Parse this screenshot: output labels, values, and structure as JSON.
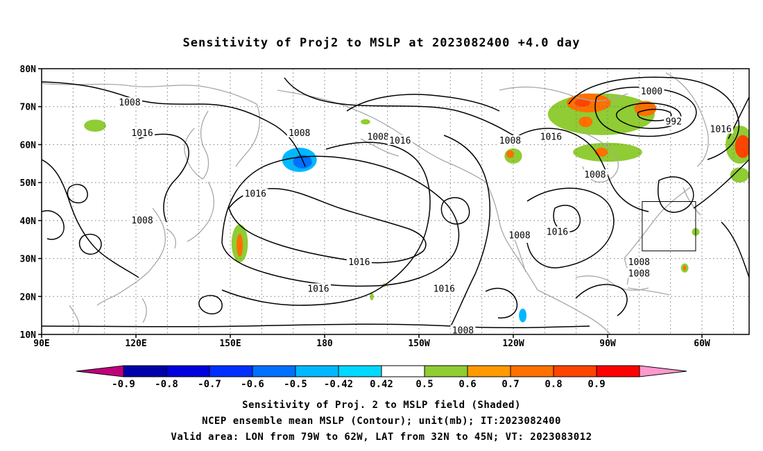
{
  "title": "Sensitivity of Proj2 to MSLP at 2023082400 +4.0 day",
  "map": {
    "lon_labels": [
      "90E",
      "120E",
      "150E",
      "180",
      "150W",
      "120W",
      "90W",
      "60W"
    ],
    "lat_labels": [
      "80N",
      "70N",
      "60N",
      "50N",
      "40N",
      "30N",
      "20N",
      "10N"
    ],
    "lon_range": [
      90,
      315
    ],
    "lat_range": [
      10,
      80
    ],
    "grid_step_lon": 10,
    "grid_step_lat": 10,
    "grid": true
  },
  "contour_labels": [
    {
      "text": "1008",
      "lon": 118,
      "lat": 71
    },
    {
      "text": "1016",
      "lon": 122,
      "lat": 63
    },
    {
      "text": "1008",
      "lon": 172,
      "lat": 63
    },
    {
      "text": "1008",
      "lon": 197,
      "lat": 62
    },
    {
      "text": "1016",
      "lon": 204,
      "lat": 61
    },
    {
      "text": "1008",
      "lon": 239,
      "lat": 61
    },
    {
      "text": "1016",
      "lon": 252,
      "lat": 62
    },
    {
      "text": "1000",
      "lon": 284,
      "lat": 74
    },
    {
      "text": "992",
      "lon": 291,
      "lat": 66
    },
    {
      "text": "1016",
      "lon": 306,
      "lat": 64
    },
    {
      "text": "1008",
      "lon": 266,
      "lat": 52
    },
    {
      "text": "1016",
      "lon": 158,
      "lat": 47
    },
    {
      "text": "1008",
      "lon": 122,
      "lat": 40
    },
    {
      "text": "1016",
      "lon": 254,
      "lat": 37
    },
    {
      "text": "1008",
      "lon": 242,
      "lat": 36
    },
    {
      "text": "1016",
      "lon": 191,
      "lat": 29
    },
    {
      "text": "1016",
      "lon": 178,
      "lat": 22
    },
    {
      "text": "1016",
      "lon": 218,
      "lat": 22
    },
    {
      "text": "1008",
      "lon": 280,
      "lat": 29
    },
    {
      "text": "1008",
      "lon": 280,
      "lat": 26
    },
    {
      "text": "1008",
      "lon": 224,
      "lat": 11
    }
  ],
  "shaded_regions": [
    {
      "type": "positive",
      "lon": 107,
      "lat": 65,
      "rx": 3.5,
      "ry": 1.6,
      "level": 0.45
    },
    {
      "type": "negative",
      "lon": 172,
      "lat": 56,
      "rx": 5.5,
      "ry": 3.2,
      "level": -0.5
    },
    {
      "type": "negative",
      "lon": 173,
      "lat": 55.5,
      "rx": 3.0,
      "ry": 1.8,
      "level": -0.6
    },
    {
      "type": "positive",
      "lon": 153,
      "lat": 34,
      "rx": 2.6,
      "ry": 5.0,
      "level": 0.45
    },
    {
      "type": "positive",
      "lon": 153,
      "lat": 33.5,
      "rx": 1.0,
      "ry": 3.0,
      "level": 0.6
    },
    {
      "type": "positive",
      "lon": 193,
      "lat": 66,
      "rx": 1.5,
      "ry": 0.7,
      "level": 0.45
    },
    {
      "type": "positive",
      "lon": 195,
      "lat": 20,
      "rx": 0.6,
      "ry": 1.0,
      "level": 0.45
    },
    {
      "type": "positive",
      "lon": 199,
      "lat": 23,
      "rx": 0.5,
      "ry": 0.5,
      "level": 0.45
    },
    {
      "type": "positive",
      "lon": 268,
      "lat": 68,
      "rx": 17.0,
      "ry": 5.5,
      "level": 0.45
    },
    {
      "type": "positive",
      "lon": 240,
      "lat": 57,
      "rx": 2.8,
      "ry": 2.0,
      "level": 0.45
    },
    {
      "type": "positive",
      "lon": 270,
      "lat": 58,
      "rx": 11.0,
      "ry": 2.5,
      "level": 0.45
    },
    {
      "type": "positive",
      "lon": 264,
      "lat": 71,
      "rx": 7.0,
      "ry": 2.5,
      "level": 0.6
    },
    {
      "type": "positive",
      "lon": 282,
      "lat": 69.5,
      "rx": 3.5,
      "ry": 2.0,
      "level": 0.6
    },
    {
      "type": "positive",
      "lon": 263,
      "lat": 66,
      "rx": 2.2,
      "ry": 1.4,
      "level": 0.6
    },
    {
      "type": "positive",
      "lon": 262,
      "lat": 71,
      "rx": 2.5,
      "ry": 1.0,
      "level": 0.7
    },
    {
      "type": "positive",
      "lon": 239,
      "lat": 57.5,
      "rx": 1.2,
      "ry": 1.0,
      "level": 0.6
    },
    {
      "type": "positive",
      "lon": 268,
      "lat": 58,
      "rx": 2.0,
      "ry": 1.2,
      "level": 0.6
    },
    {
      "type": "positive",
      "lon": 312,
      "lat": 60,
      "rx": 4.5,
      "ry": 5.0,
      "level": 0.45
    },
    {
      "type": "positive",
      "lon": 313,
      "lat": 59.5,
      "rx": 2.5,
      "ry": 3.0,
      "level": 0.7
    },
    {
      "type": "positive",
      "lon": 312,
      "lat": 52,
      "rx": 3.0,
      "ry": 2.0,
      "level": 0.45
    },
    {
      "type": "positive",
      "lon": 298,
      "lat": 37,
      "rx": 1.2,
      "ry": 1.0,
      "level": 0.45
    },
    {
      "type": "positive",
      "lon": 294.5,
      "lat": 27.5,
      "rx": 1.2,
      "ry": 1.2,
      "level": 0.45
    },
    {
      "type": "positive",
      "lon": 294.5,
      "lat": 27.5,
      "rx": 0.5,
      "ry": 0.6,
      "level": 0.6
    },
    {
      "type": "negative",
      "lon": 243,
      "lat": 15,
      "rx": 1.2,
      "ry": 1.8,
      "level": -0.5
    }
  ],
  "valid_area_box": {
    "lon_min": 281,
    "lon_max": 298,
    "lat_min": 32,
    "lat_max": 45
  },
  "colorbar": {
    "labels": [
      "-0.9",
      "-0.8",
      "-0.7",
      "-0.6",
      "-0.5",
      "-0.42",
      "0.42",
      "0.5",
      "0.6",
      "0.7",
      "0.8",
      "0.9"
    ],
    "colors": [
      "#c0007a",
      "#0000a8",
      "#0000dc",
      "#0030ff",
      "#0070ff",
      "#00b8ff",
      "#00d8ff",
      "#ffffff",
      "#90cc33",
      "#ff9a00",
      "#ff7000",
      "#ff4400",
      "#ff0000",
      "#ff99cc"
    ]
  },
  "footer": {
    "line1": "Sensitivity of Proj. 2 to MSLP field (Shaded)",
    "line2": "NCEP ensemble mean MSLP (Contour); unit(mb); IT:2023082400",
    "line3": "Valid area: LON from 79W to 62W, LAT from 32N to 45N; VT: 2023083012"
  }
}
